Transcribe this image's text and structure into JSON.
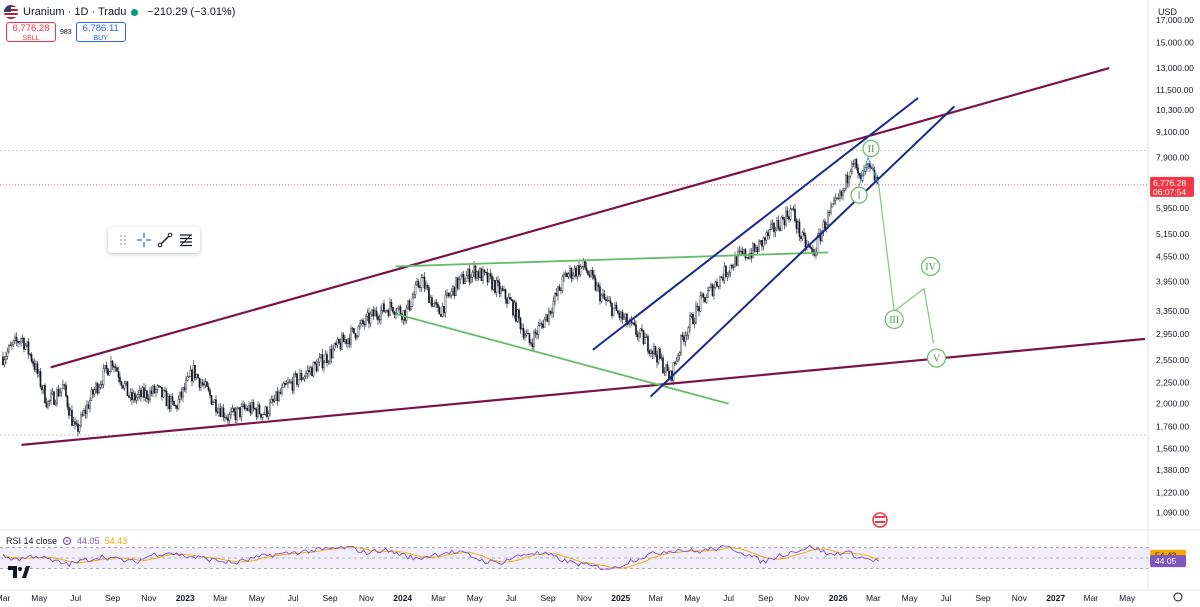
{
  "header": {
    "symbol": "Uranium · 1D · Tradu",
    "change": "−210.29 (−3.01%)",
    "sell_price": "6,776.28",
    "sell_label": "SELL",
    "spread": "983",
    "buy_price": "6,786.11",
    "buy_label": "BUY"
  },
  "toolbar": {
    "icons": [
      "drag-handle-icon",
      "crosshair-icon",
      "trend-line-icon",
      "fib-levels-icon"
    ]
  },
  "rsi": {
    "label": "RSI 14 close",
    "value": "44.05",
    "ma_value": "54.43",
    "scale_tags": [
      "54.43",
      "44.05"
    ],
    "levels": [
      70,
      50,
      30
    ]
  },
  "currency": "USD",
  "colors": {
    "up": "#089981",
    "down": "#f23645",
    "channel": "#1a2a8c",
    "wedge": "#7a1445",
    "triangle": "#66bb6a",
    "rsi": "#7e57c2",
    "rsi_ma": "#f7a600",
    "price_tag": "#f23645"
  },
  "chart_data": {
    "type": "candlestick",
    "title": "Uranium · 1D · Tradu",
    "y_scale": "log",
    "ylim": [
      1000,
      19000
    ],
    "y_ticks": [
      1090,
      1220,
      1380,
      1560,
      1760,
      2000,
      2250,
      2550,
      2950,
      3350,
      3950,
      4550,
      5150,
      5950,
      6900,
      7900,
      9100,
      10300,
      11500,
      13000,
      15000,
      17000
    ],
    "y_tick_labels": [
      "1,090.00",
      "1,220.00",
      "1,380.00",
      "1,560.00",
      "1,760.00",
      "2,000.00",
      "2,250.00",
      "2,550.00",
      "2,950.00",
      "3,350.00",
      "3,950.00",
      "4,550.00",
      "5,150.00",
      "5,950.00",
      "6,900.00",
      "7,900.00",
      "9,100.00",
      "10,300.00",
      "11,500.00",
      "13,000.00",
      "15,000.00",
      "17,000.00"
    ],
    "x_ticks": [
      "2022-03",
      "2022-05",
      "2022-07",
      "2022-09",
      "2022-11",
      "2023-01",
      "2023-03",
      "2023-05",
      "2023-07",
      "2023-09",
      "2023-11",
      "2024-01",
      "2024-03",
      "2024-05",
      "2024-07",
      "2024-09",
      "2024-11",
      "2025-01",
      "2025-03",
      "2025-05",
      "2025-07",
      "2025-09",
      "2025-11",
      "2026-01",
      "2026-03",
      "2026-05",
      "2026-07",
      "2026-09",
      "2026-11",
      "2027-01",
      "2027-03",
      "2027-05"
    ],
    "x_tick_labels": [
      "Mar",
      "May",
      "Jul",
      "Sep",
      "Nov",
      "2023",
      "Mar",
      "May",
      "Jul",
      "Sep",
      "Nov",
      "2024",
      "Mar",
      "May",
      "Jul",
      "Sep",
      "Nov",
      "2025",
      "Mar",
      "May",
      "Jul",
      "Sep",
      "Nov",
      "2026",
      "Mar",
      "May",
      "Jul",
      "Sep",
      "Nov",
      "2027",
      "Mar",
      "May"
    ],
    "last_price": 6776.28,
    "last_price_label": "6,776.28",
    "countdown": "06:07:54",
    "price_path": [
      [
        "2022-03-01",
        2600
      ],
      [
        "2022-04-01",
        2900
      ],
      [
        "2022-04-20",
        2550
      ],
      [
        "2022-05-15",
        2000
      ],
      [
        "2022-06-10",
        2200
      ],
      [
        "2022-07-01",
        1700
      ],
      [
        "2022-08-01",
        2150
      ],
      [
        "2022-09-01",
        2550
      ],
      [
        "2022-10-01",
        2050
      ],
      [
        "2022-11-15",
        2150
      ],
      [
        "2022-12-15",
        1950
      ],
      [
        "2023-01-15",
        2400
      ],
      [
        "2023-02-15",
        2050
      ],
      [
        "2023-03-15",
        1850
      ],
      [
        "2023-04-15",
        1950
      ],
      [
        "2023-05-15",
        1900
      ],
      [
        "2023-06-20",
        2200
      ],
      [
        "2023-07-20",
        2350
      ],
      [
        "2023-08-20",
        2550
      ],
      [
        "2023-09-20",
        2800
      ],
      [
        "2023-10-20",
        3050
      ],
      [
        "2023-11-15",
        3300
      ],
      [
        "2023-12-15",
        3450
      ],
      [
        "2024-01-05",
        3300
      ],
      [
        "2024-02-01",
        4000
      ],
      [
        "2024-03-01",
        3300
      ],
      [
        "2024-04-01",
        3900
      ],
      [
        "2024-05-01",
        4200
      ],
      [
        "2024-06-01",
        3900
      ],
      [
        "2024-07-01",
        3500
      ],
      [
        "2024-08-01",
        2800
      ],
      [
        "2024-09-01",
        3300
      ],
      [
        "2024-10-01",
        4100
      ],
      [
        "2024-11-01",
        4300
      ],
      [
        "2024-12-01",
        3600
      ],
      [
        "2025-01-15",
        3100
      ],
      [
        "2025-02-15",
        2800
      ],
      [
        "2025-03-05",
        2600
      ],
      [
        "2025-03-25",
        2300
      ],
      [
        "2025-04-15",
        2900
      ],
      [
        "2025-05-15",
        3500
      ],
      [
        "2025-06-15",
        4000
      ],
      [
        "2025-07-15",
        4500
      ],
      [
        "2025-08-15",
        4700
      ],
      [
        "2025-09-15",
        5300
      ],
      [
        "2025-10-15",
        5900
      ],
      [
        "2025-11-01",
        5000
      ],
      [
        "2025-11-20",
        4600
      ],
      [
        "2025-12-10",
        5500
      ],
      [
        "2026-01-10",
        6500
      ],
      [
        "2026-01-25",
        8000
      ],
      [
        "2026-02-05",
        6900
      ],
      [
        "2026-02-20",
        7400
      ],
      [
        "2026-03-05",
        7000
      ],
      [
        "2026-03-10",
        6776
      ]
    ],
    "wave_labels": [
      {
        "text": "I",
        "x": "2026-02-05",
        "y": 6400
      },
      {
        "text": "II",
        "x": "2026-02-25",
        "y": 8300
      },
      {
        "text": "III",
        "x": "2026-04-05",
        "y": 3200
      },
      {
        "text": "IV",
        "x": "2026-06-05",
        "y": 4300
      },
      {
        "text": "V",
        "x": "2026-06-15",
        "y": 2580
      }
    ],
    "wave_path": [
      [
        "2026-03-10",
        6776
      ],
      [
        "2026-04-05",
        3350
      ],
      [
        "2026-05-25",
        3800
      ],
      [
        "2026-06-10",
        2800
      ]
    ],
    "annotations": [
      {
        "style": "wedge",
        "from": [
          "2022-05-20",
          2450
        ],
        "to": [
          "2027-04-01",
          13000
        ]
      },
      {
        "style": "wedge",
        "from": [
          "2022-04-01",
          1590
        ],
        "to": [
          "2027-05-31",
          2870
        ]
      },
      {
        "style": "triangle",
        "from": [
          "2023-12-20",
          4300
        ],
        "to": [
          "2025-12-15",
          4650
        ]
      },
      {
        "style": "triangle",
        "from": [
          "2023-12-20",
          3300
        ],
        "to": [
          "2025-07-01",
          2000
        ]
      },
      {
        "style": "channel",
        "from": [
          "2024-11-15",
          2700
        ],
        "to": [
          "2026-05-15",
          11000
        ]
      },
      {
        "style": "channel",
        "from": [
          "2025-02-20",
          2080
        ],
        "to": [
          "2026-07-15",
          10500
        ]
      }
    ],
    "rsi_series": [
      52,
      48,
      55,
      44,
      38,
      46,
      53,
      47,
      42,
      56,
      61,
      54,
      50,
      45,
      40,
      48,
      55,
      58,
      62,
      65,
      68,
      70,
      60,
      66,
      58,
      48,
      56,
      62,
      58,
      45,
      40,
      52,
      60,
      56,
      44,
      38,
      32,
      30,
      45,
      55,
      63,
      66,
      62,
      68,
      70,
      58,
      42,
      55,
      64,
      72,
      56,
      62,
      50,
      44
    ]
  }
}
